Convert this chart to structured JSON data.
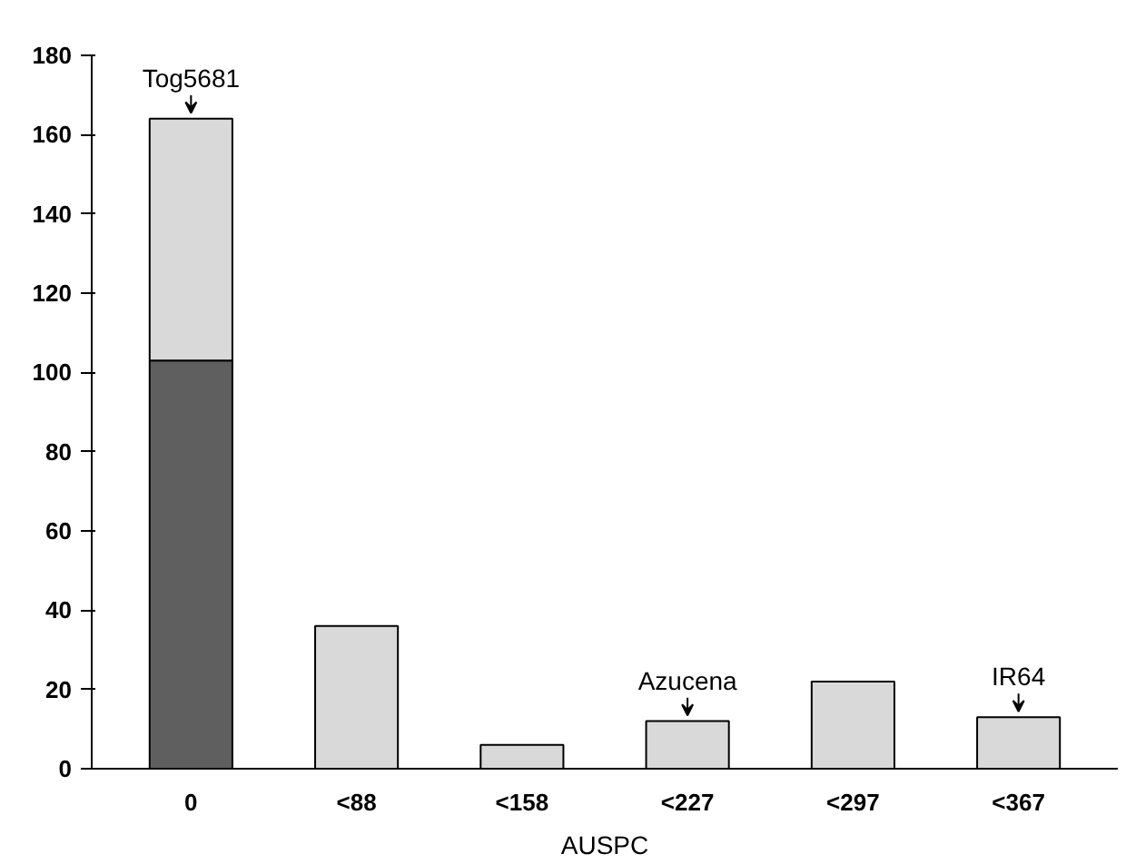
{
  "chart_data": {
    "type": "bar",
    "stacked": true,
    "xlabel": "AUSPC",
    "categories": [
      "0",
      "<88",
      "<158",
      "<227",
      "<297",
      "<367"
    ],
    "series": [
      {
        "color": "#5f5f5f",
        "values": [
          103,
          null,
          null,
          null,
          null,
          null
        ]
      },
      {
        "color": "#d9d9d9",
        "values": [
          61,
          36,
          6,
          12,
          22,
          13
        ]
      }
    ],
    "ylim": [
      0,
      180
    ],
    "yticks": [
      0,
      20,
      40,
      60,
      80,
      100,
      120,
      140,
      160,
      180
    ],
    "grid": false,
    "annotations": [
      {
        "text": "Tog5681",
        "x": "0",
        "y": 164
      },
      {
        "text": "Azucena",
        "x": "<227",
        "y": 12
      },
      {
        "text": "IR64",
        "x": "<367",
        "y": 13
      }
    ]
  }
}
